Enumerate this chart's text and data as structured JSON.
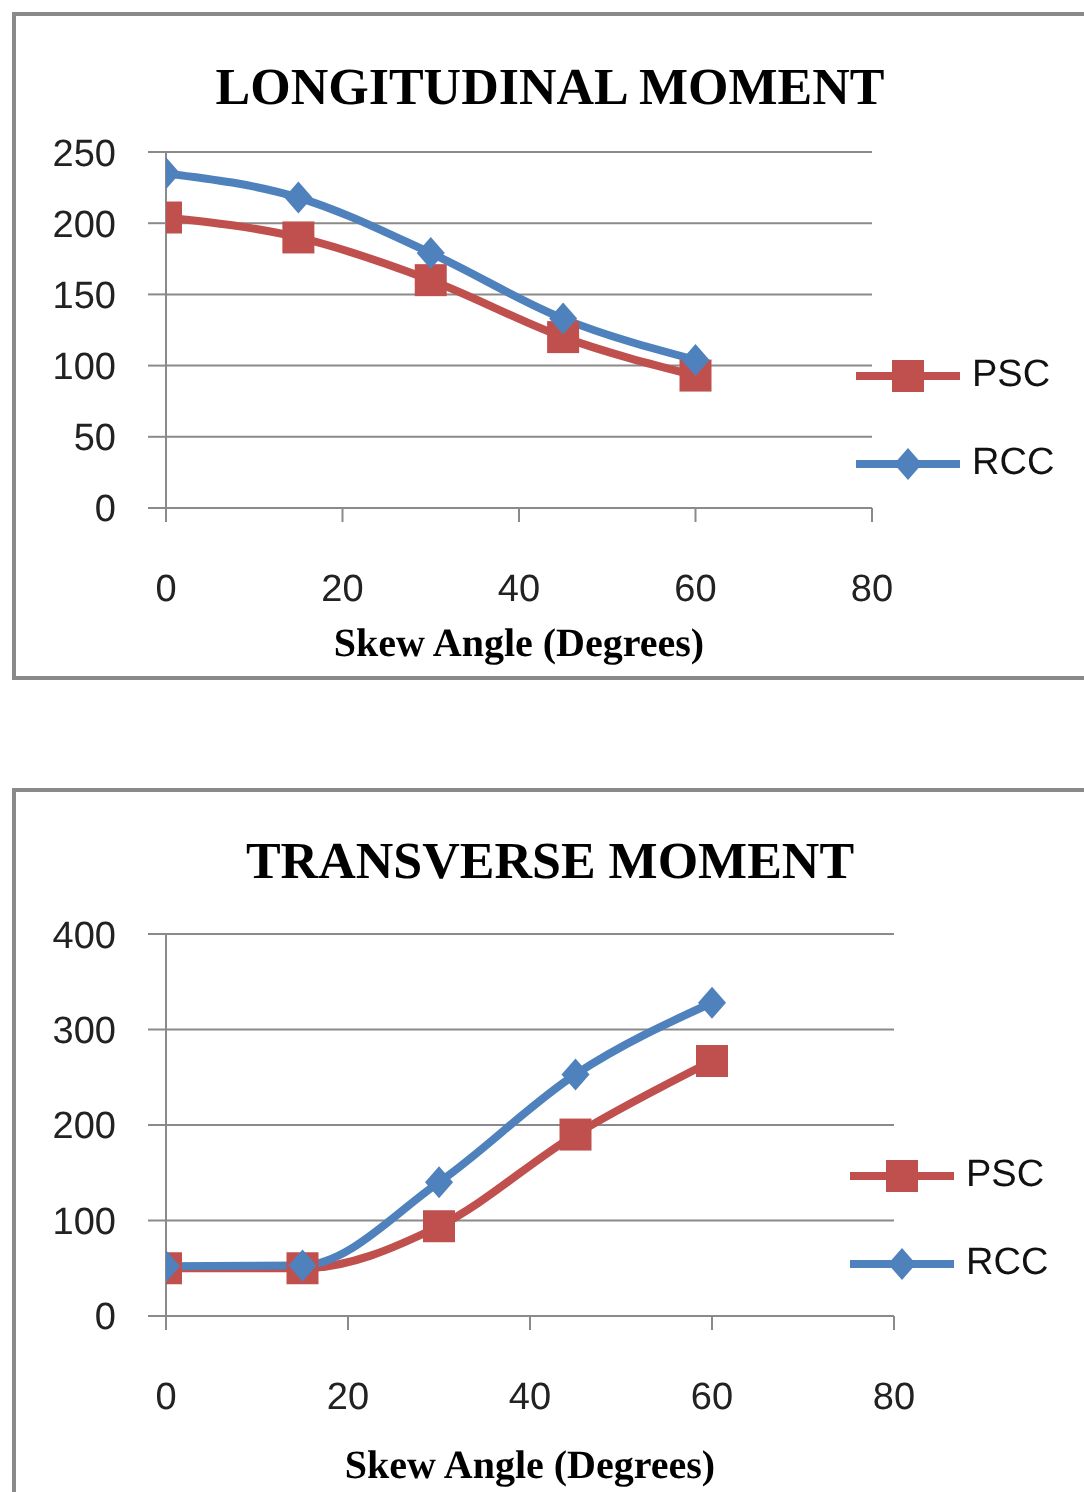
{
  "chart_data": [
    {
      "type": "line",
      "title": "LONGITUDINAL MOMENT",
      "xlabel": "Skew Angle (Degrees)",
      "x": [
        0,
        15,
        30,
        45,
        60
      ],
      "series": [
        {
          "name": "PSC",
          "color": "#c0504d",
          "marker": "square",
          "values": [
            204,
            190,
            160,
            120,
            93
          ]
        },
        {
          "name": "RCC",
          "color": "#4f81bd",
          "marker": "diamond",
          "values": [
            235,
            218,
            179,
            133,
            104
          ]
        }
      ],
      "xlim": [
        0,
        80
      ],
      "xticks": [
        0,
        20,
        40,
        60,
        80
      ],
      "ylim": [
        0,
        250
      ],
      "yticks": [
        0,
        50,
        100,
        150,
        200,
        250
      ],
      "grid": "y",
      "legend": "right"
    },
    {
      "type": "line",
      "title": "TRANSVERSE MOMENT",
      "xlabel": "Skew Angle (Degrees)",
      "x": [
        0,
        15,
        30,
        45,
        60
      ],
      "series": [
        {
          "name": "PSC",
          "color": "#c0504d",
          "marker": "square",
          "values": [
            50,
            50,
            94,
            190,
            267
          ]
        },
        {
          "name": "RCC",
          "color": "#4f81bd",
          "marker": "diamond",
          "values": [
            52,
            53,
            140,
            253,
            328
          ]
        }
      ],
      "xlim": [
        0,
        80
      ],
      "xticks": [
        0,
        20,
        40,
        60,
        80
      ],
      "ylim": [
        0,
        400
      ],
      "yticks": [
        0,
        100,
        200,
        300,
        400
      ],
      "grid": "y",
      "legend": "right"
    }
  ]
}
